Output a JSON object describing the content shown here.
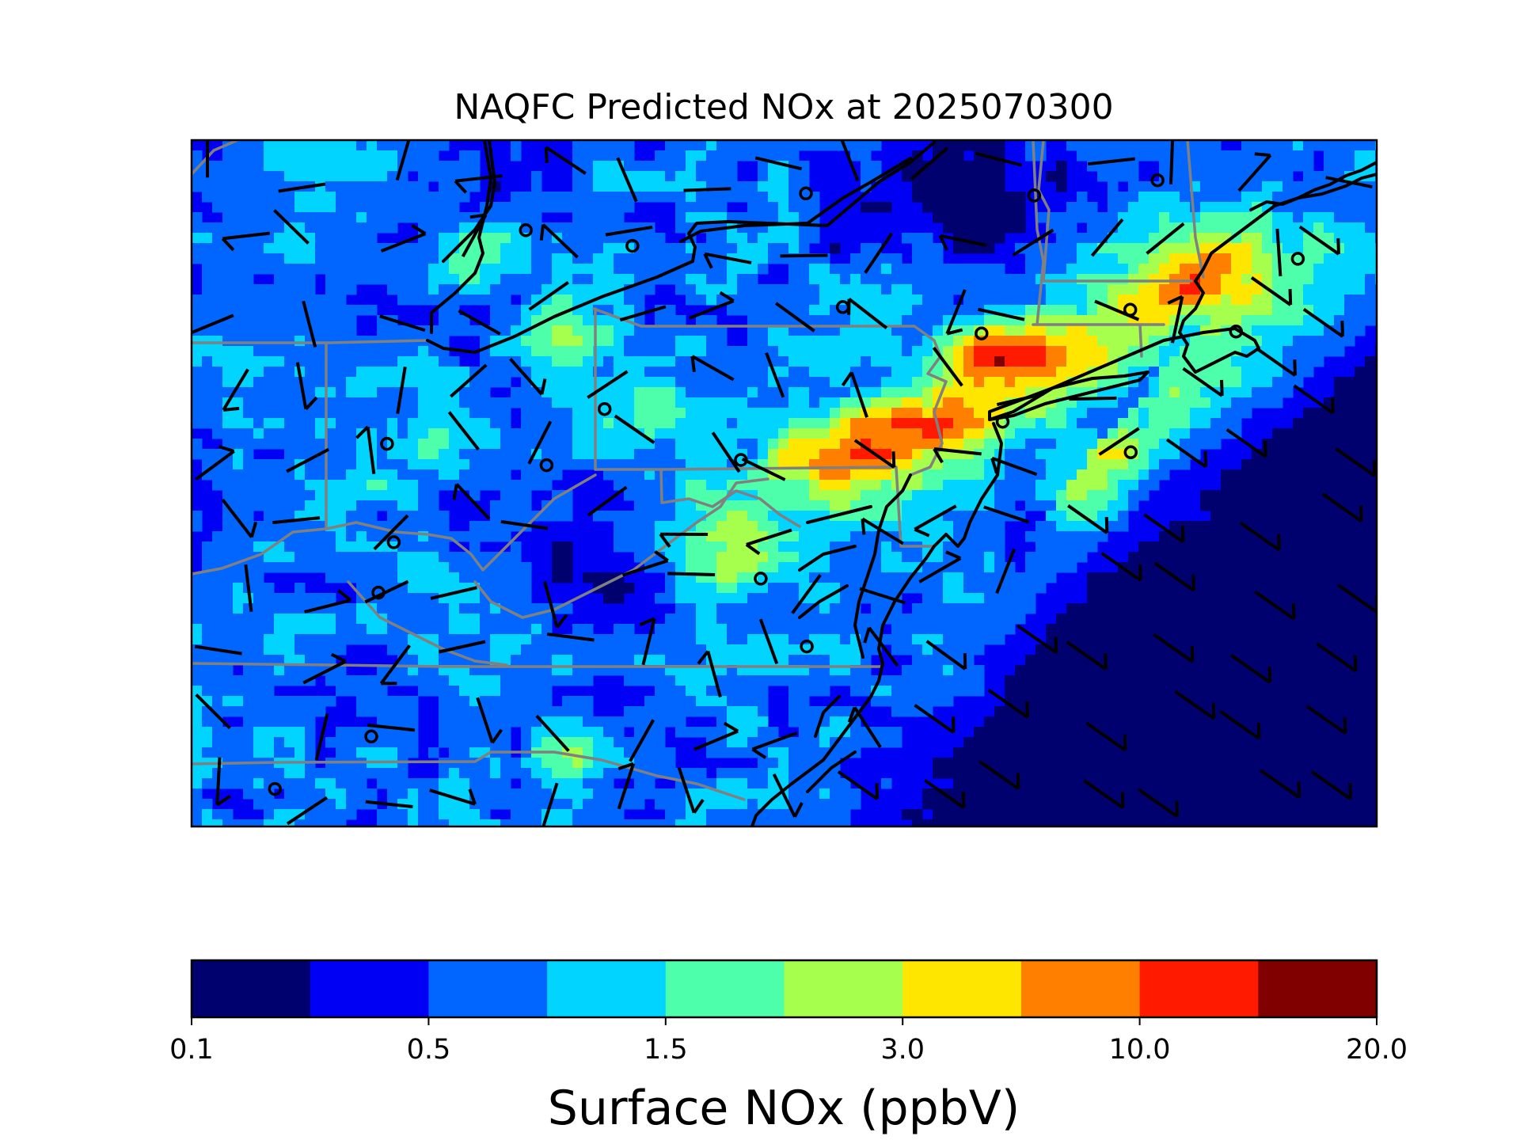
{
  "title": "NAQFC Predicted NOx at 2025070300",
  "colorbar": {
    "label": "Surface NOx (ppbV)",
    "colors": [
      "#00006e",
      "#0000f5",
      "#0066ff",
      "#00d4ff",
      "#4dffaa",
      "#a6ff4d",
      "#ffe600",
      "#ff8000",
      "#ff1a00",
      "#800000"
    ],
    "tick_labels": [
      "0.1",
      "0.5",
      "1.5",
      "3.0",
      "10.0",
      "20.0"
    ],
    "tick_fractions": [
      0.0,
      0.2,
      0.4,
      0.6,
      0.8,
      1.0
    ]
  },
  "map": {
    "field": "Surface NOx",
    "units": "ppbV",
    "time": "2025070300",
    "region": "Mid-Atlantic / Northeastern United States",
    "overlays": [
      "state-boundaries",
      "coastlines",
      "wind-barbs",
      "monitor-site-markers"
    ]
  }
}
